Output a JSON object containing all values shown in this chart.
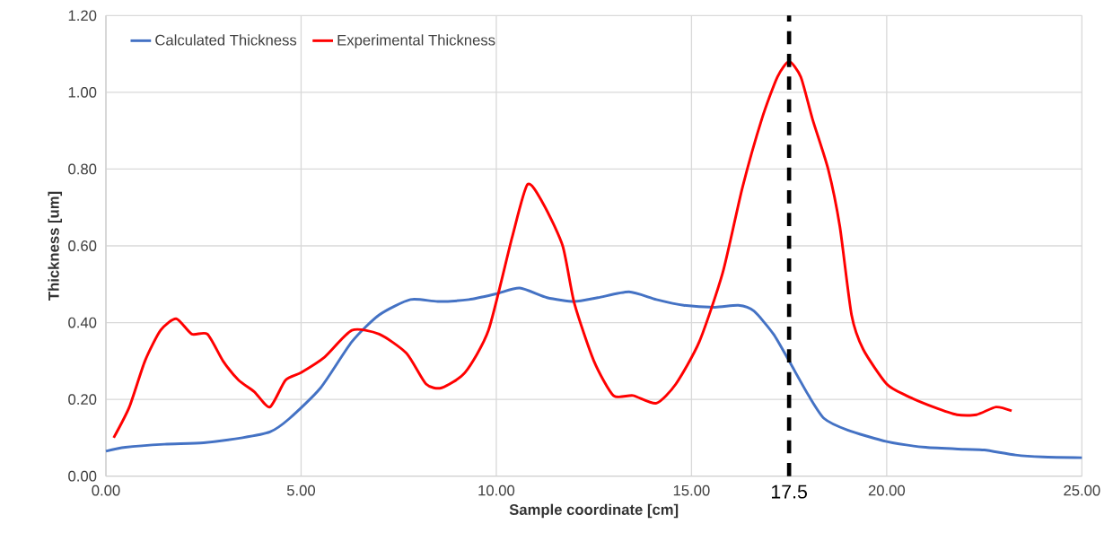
{
  "chart_data": {
    "type": "line",
    "xlabel": "Sample coordinate [cm]",
    "ylabel": "Thickness [um]",
    "xlim": [
      0,
      25
    ],
    "ylim": [
      0,
      1.2
    ],
    "xticks": [
      {
        "value": 0,
        "label": "0.00"
      },
      {
        "value": 5,
        "label": "5.00"
      },
      {
        "value": 10,
        "label": "10.00"
      },
      {
        "value": 15,
        "label": "15.00"
      },
      {
        "value": 20,
        "label": "20.00"
      },
      {
        "value": 25,
        "label": "25.00"
      }
    ],
    "yticks": [
      {
        "value": 0,
        "label": "0.00"
      },
      {
        "value": 0.2,
        "label": "0.20"
      },
      {
        "value": 0.4,
        "label": "0.40"
      },
      {
        "value": 0.6,
        "label": "0.60"
      },
      {
        "value": 0.8,
        "label": "0.80"
      },
      {
        "value": 1.0,
        "label": "1.00"
      },
      {
        "value": 1.2,
        "label": "1.20"
      }
    ],
    "grid": true,
    "legend": "top left",
    "marker": "none",
    "line_style": "solid",
    "ref_lines": [
      {
        "axis": "x",
        "value": 17.5,
        "label": "17.5",
        "color": "#000000",
        "line_style": "dashed"
      }
    ],
    "series": [
      {
        "name": "Calculated Thickness",
        "color": "#4472c4",
        "x": [
          0,
          0.5,
          1.5,
          2.5,
          3.5,
          4.2,
          4.7,
          5.5,
          6.3,
          7.0,
          7.8,
          8.5,
          9.3,
          10.0,
          10.6,
          11.3,
          12.0,
          12.6,
          13.4,
          14.1,
          14.8,
          15.6,
          16.2,
          16.6,
          17.1,
          17.5,
          18.0,
          18.4,
          19.0,
          20.0,
          21.0,
          22.0,
          22.5,
          23.3,
          24.0,
          25.0
        ],
        "values": [
          0.065,
          0.075,
          0.083,
          0.087,
          0.1,
          0.115,
          0.15,
          0.23,
          0.35,
          0.42,
          0.46,
          0.455,
          0.46,
          0.475,
          0.49,
          0.465,
          0.455,
          0.465,
          0.48,
          0.46,
          0.445,
          0.44,
          0.445,
          0.43,
          0.37,
          0.3,
          0.21,
          0.15,
          0.12,
          0.09,
          0.075,
          0.07,
          0.068,
          0.055,
          0.05,
          0.048
        ]
      },
      {
        "name": "Experimental Thickness",
        "color": "#ff0000",
        "x": [
          0.2,
          0.6,
          1.0,
          1.4,
          1.8,
          2.2,
          2.6,
          3.0,
          3.4,
          3.8,
          4.2,
          4.6,
          5.0,
          5.6,
          6.3,
          7.0,
          7.7,
          8.2,
          8.6,
          9.2,
          9.8,
          10.4,
          10.8,
          11.2,
          11.7,
          12.0,
          12.5,
          13.0,
          13.5,
          14.1,
          14.6,
          15.2,
          15.8,
          16.3,
          16.8,
          17.2,
          17.5,
          17.8,
          18.1,
          18.5,
          18.8,
          19.1,
          19.4,
          20.0,
          20.5,
          21.2,
          21.8,
          22.3,
          22.8,
          23.2
        ],
        "values": [
          0.1,
          0.18,
          0.3,
          0.38,
          0.41,
          0.37,
          0.37,
          0.3,
          0.25,
          0.22,
          0.18,
          0.25,
          0.27,
          0.31,
          0.38,
          0.37,
          0.32,
          0.24,
          0.23,
          0.27,
          0.38,
          0.62,
          0.76,
          0.71,
          0.6,
          0.45,
          0.3,
          0.21,
          0.21,
          0.19,
          0.24,
          0.35,
          0.53,
          0.75,
          0.93,
          1.04,
          1.08,
          1.04,
          0.93,
          0.8,
          0.65,
          0.42,
          0.33,
          0.24,
          0.21,
          0.18,
          0.16,
          0.16,
          0.18,
          0.17
        ]
      }
    ]
  }
}
